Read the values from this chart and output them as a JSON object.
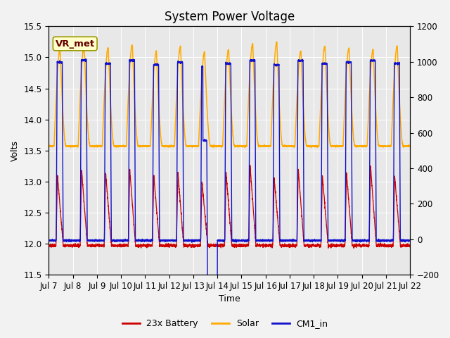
{
  "title": "System Power Voltage",
  "xlabel": "Time",
  "ylabel": "Volts",
  "ylim": [
    11.5,
    15.5
  ],
  "ylim2": [
    -200,
    1200
  ],
  "yticks": [
    11.5,
    12.0,
    12.5,
    13.0,
    13.5,
    14.0,
    14.5,
    15.0,
    15.5
  ],
  "yticks2": [
    -200,
    0,
    200,
    400,
    600,
    800,
    1000,
    1200
  ],
  "xtick_labels": [
    "Jul 7",
    "Jul 8",
    "Jul 9",
    "Jul 10",
    "Jul 11",
    "Jul 12",
    "Jul 13",
    "Jul 14",
    "Jul 15",
    "Jul 16",
    "Jul 17",
    "Jul 18",
    "Jul 19",
    "Jul 20",
    "Jul 21",
    "Jul 22"
  ],
  "colors": {
    "battery": "#cc0000",
    "solar": "#ffaa00",
    "cm1": "#1111cc",
    "background": "#e8e8e8",
    "grid": "#ffffff",
    "annotation_bg": "#ffffcc",
    "annotation_border": "#999900",
    "annotation_text": "#660000"
  },
  "annotation_text": "VR_met",
  "legend_labels": [
    "23x Battery",
    "Solar",
    "CM1_in"
  ],
  "n_days": 15,
  "battery_base": 11.97,
  "battery_peak": 13.2,
  "solar_base": 13.57,
  "solar_peak": 15.18,
  "cm1_base": 12.05,
  "cm1_peak": 14.92,
  "title_fontsize": 12,
  "axis_fontsize": 9,
  "tick_fontsize": 8.5,
  "legend_fontsize": 9
}
